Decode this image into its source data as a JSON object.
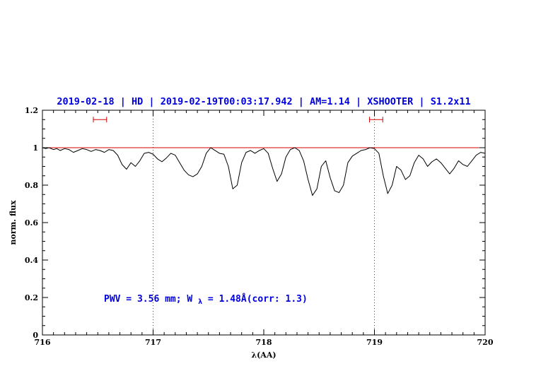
{
  "colors": {
    "title": "#0000dd",
    "annotation": "#0000dd",
    "continuum": "#d40000",
    "error_bar": "#d40000",
    "spectrum": "#000000",
    "axis": "#000000",
    "vline": "#444444"
  },
  "annotation_parts": {
    "pre": "PWV = 3.56 mm; W",
    "sub": "λ",
    "post": " = 1.48Å(corr: 1.3)"
  },
  "chart_data": {
    "type": "line",
    "title": "2019-02-18 | HD | 2019-02-19T00:03:17.942 | AM=1.14 | XSHOOTER | S1.2x11",
    "xlabel": "λ(AA)",
    "ylabel": "norm. flux",
    "xlim": [
      716,
      720
    ],
    "ylim": [
      0,
      1.2
    ],
    "xticks": [
      716,
      717,
      718,
      719,
      720
    ],
    "xtick_labels": [
      "716",
      "717",
      "718",
      "719",
      "720"
    ],
    "yticks": [
      0,
      0.2,
      0.4,
      0.6,
      0.8,
      1,
      1.2
    ],
    "ytick_labels": [
      "0",
      "0.2",
      "0.4",
      "0.6",
      "0.8",
      "1",
      "1.2"
    ],
    "x_minor_step": 0.1,
    "y_minor_step": 0.05,
    "vlines": [
      717,
      719
    ],
    "continuum_y": 1.0,
    "error_bars": [
      {
        "x_center": 716.52,
        "half_width": 0.06,
        "y": 1.15
      },
      {
        "x_center": 719.015,
        "half_width": 0.06,
        "y": 1.15
      }
    ],
    "grid": false,
    "legend": "none",
    "series": [
      {
        "name": "spectrum",
        "x": [
          716.0,
          716.03,
          716.06,
          716.1,
          716.13,
          716.16,
          716.2,
          716.24,
          716.28,
          716.32,
          716.36,
          716.4,
          716.44,
          716.48,
          716.52,
          716.56,
          716.6,
          716.64,
          716.68,
          716.72,
          716.76,
          716.8,
          716.84,
          716.88,
          716.92,
          716.96,
          717.0,
          717.04,
          717.08,
          717.12,
          717.16,
          717.2,
          717.24,
          717.28,
          717.32,
          717.36,
          717.4,
          717.44,
          717.48,
          717.52,
          717.56,
          717.6,
          717.64,
          717.68,
          717.72,
          717.76,
          717.8,
          717.84,
          717.88,
          717.92,
          717.96,
          718.0,
          718.04,
          718.08,
          718.12,
          718.16,
          718.2,
          718.24,
          718.28,
          718.32,
          718.36,
          718.4,
          718.44,
          718.48,
          718.52,
          718.56,
          718.6,
          718.64,
          718.68,
          718.72,
          718.76,
          718.8,
          718.84,
          718.88,
          718.92,
          718.96,
          719.0,
          719.04,
          719.08,
          719.12,
          719.16,
          719.2,
          719.24,
          719.28,
          719.32,
          719.36,
          719.4,
          719.44,
          719.48,
          719.52,
          719.56,
          719.6,
          719.64,
          719.68,
          719.72,
          719.76,
          719.8,
          719.84,
          719.88,
          719.92,
          719.96,
          720.0
        ],
        "y": [
          1.0,
          0.995,
          1.0,
          0.99,
          0.995,
          0.985,
          0.995,
          0.99,
          0.975,
          0.985,
          0.995,
          0.99,
          0.98,
          0.99,
          0.985,
          0.975,
          0.99,
          0.985,
          0.96,
          0.91,
          0.885,
          0.92,
          0.9,
          0.93,
          0.97,
          0.975,
          0.965,
          0.94,
          0.925,
          0.945,
          0.97,
          0.96,
          0.92,
          0.88,
          0.855,
          0.845,
          0.86,
          0.9,
          0.97,
          1.0,
          0.985,
          0.97,
          0.965,
          0.9,
          0.78,
          0.8,
          0.92,
          0.975,
          0.985,
          0.97,
          0.985,
          0.995,
          0.97,
          0.89,
          0.82,
          0.86,
          0.95,
          0.99,
          1.0,
          0.985,
          0.93,
          0.83,
          0.745,
          0.78,
          0.9,
          0.93,
          0.84,
          0.77,
          0.76,
          0.8,
          0.92,
          0.955,
          0.97,
          0.985,
          0.99,
          1.0,
          0.995,
          0.97,
          0.85,
          0.755,
          0.8,
          0.9,
          0.88,
          0.83,
          0.85,
          0.92,
          0.96,
          0.94,
          0.9,
          0.925,
          0.94,
          0.92,
          0.89,
          0.86,
          0.89,
          0.93,
          0.91,
          0.9,
          0.93,
          0.96,
          0.975,
          0.97
        ]
      }
    ]
  }
}
